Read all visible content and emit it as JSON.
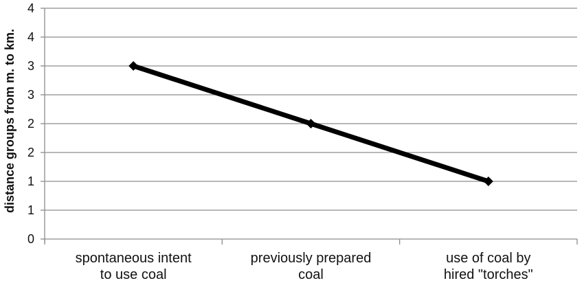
{
  "chart_data": {
    "type": "line",
    "title": "",
    "xlabel": "",
    "ylabel": "distance groups from m. to km.",
    "categories": [
      [
        "spontaneous intent",
        "to use coal"
      ],
      [
        "previously prepared",
        "coal"
      ],
      [
        "use of coal by",
        "hired \"torches\""
      ]
    ],
    "series": [
      {
        "values": [
          3,
          2,
          1
        ],
        "marker": "diamond",
        "color": "#000000"
      }
    ],
    "yticks": [
      0,
      0.5,
      1,
      1.5,
      2,
      2.5,
      3,
      3.5,
      4
    ],
    "ytick_labels": [
      "0",
      "1",
      "1",
      "2",
      "2",
      "3",
      "3",
      "4",
      "4"
    ],
    "ylim": [
      0,
      4
    ],
    "grid": true,
    "legend": "none"
  }
}
